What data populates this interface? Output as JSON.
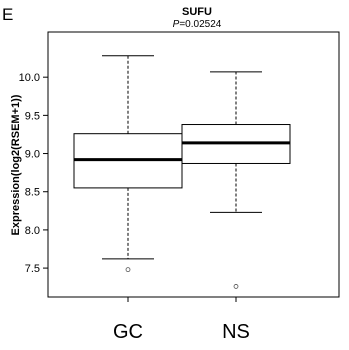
{
  "panel_letter": "E",
  "chart_data": {
    "type": "box",
    "title": "SUFU",
    "subtitle_prefix": "P",
    "subtitle_value": "=0.02524",
    "xlabel": "",
    "ylabel": "Expression(log2(RSEM+1))",
    "ylim": [
      7.2,
      10.5
    ],
    "yticks": [
      7.5,
      8.0,
      8.5,
      9.0,
      9.5,
      10.0
    ],
    "ytick_labels": [
      "7.5",
      "8.0",
      "8.5",
      "9.0",
      "9.5",
      "10.0"
    ],
    "grid": false,
    "categories": [
      "GC",
      "NS"
    ],
    "boxes": [
      {
        "category": "GC",
        "whisker_low": 7.62,
        "q1": 8.55,
        "median": 8.92,
        "q3": 9.26,
        "whisker_high": 10.28,
        "outliers": [
          7.48
        ]
      },
      {
        "category": "NS",
        "whisker_low": 8.23,
        "q1": 8.87,
        "median": 9.14,
        "q3": 9.38,
        "whisker_high": 10.07,
        "outliers": [
          7.26
        ]
      }
    ]
  }
}
